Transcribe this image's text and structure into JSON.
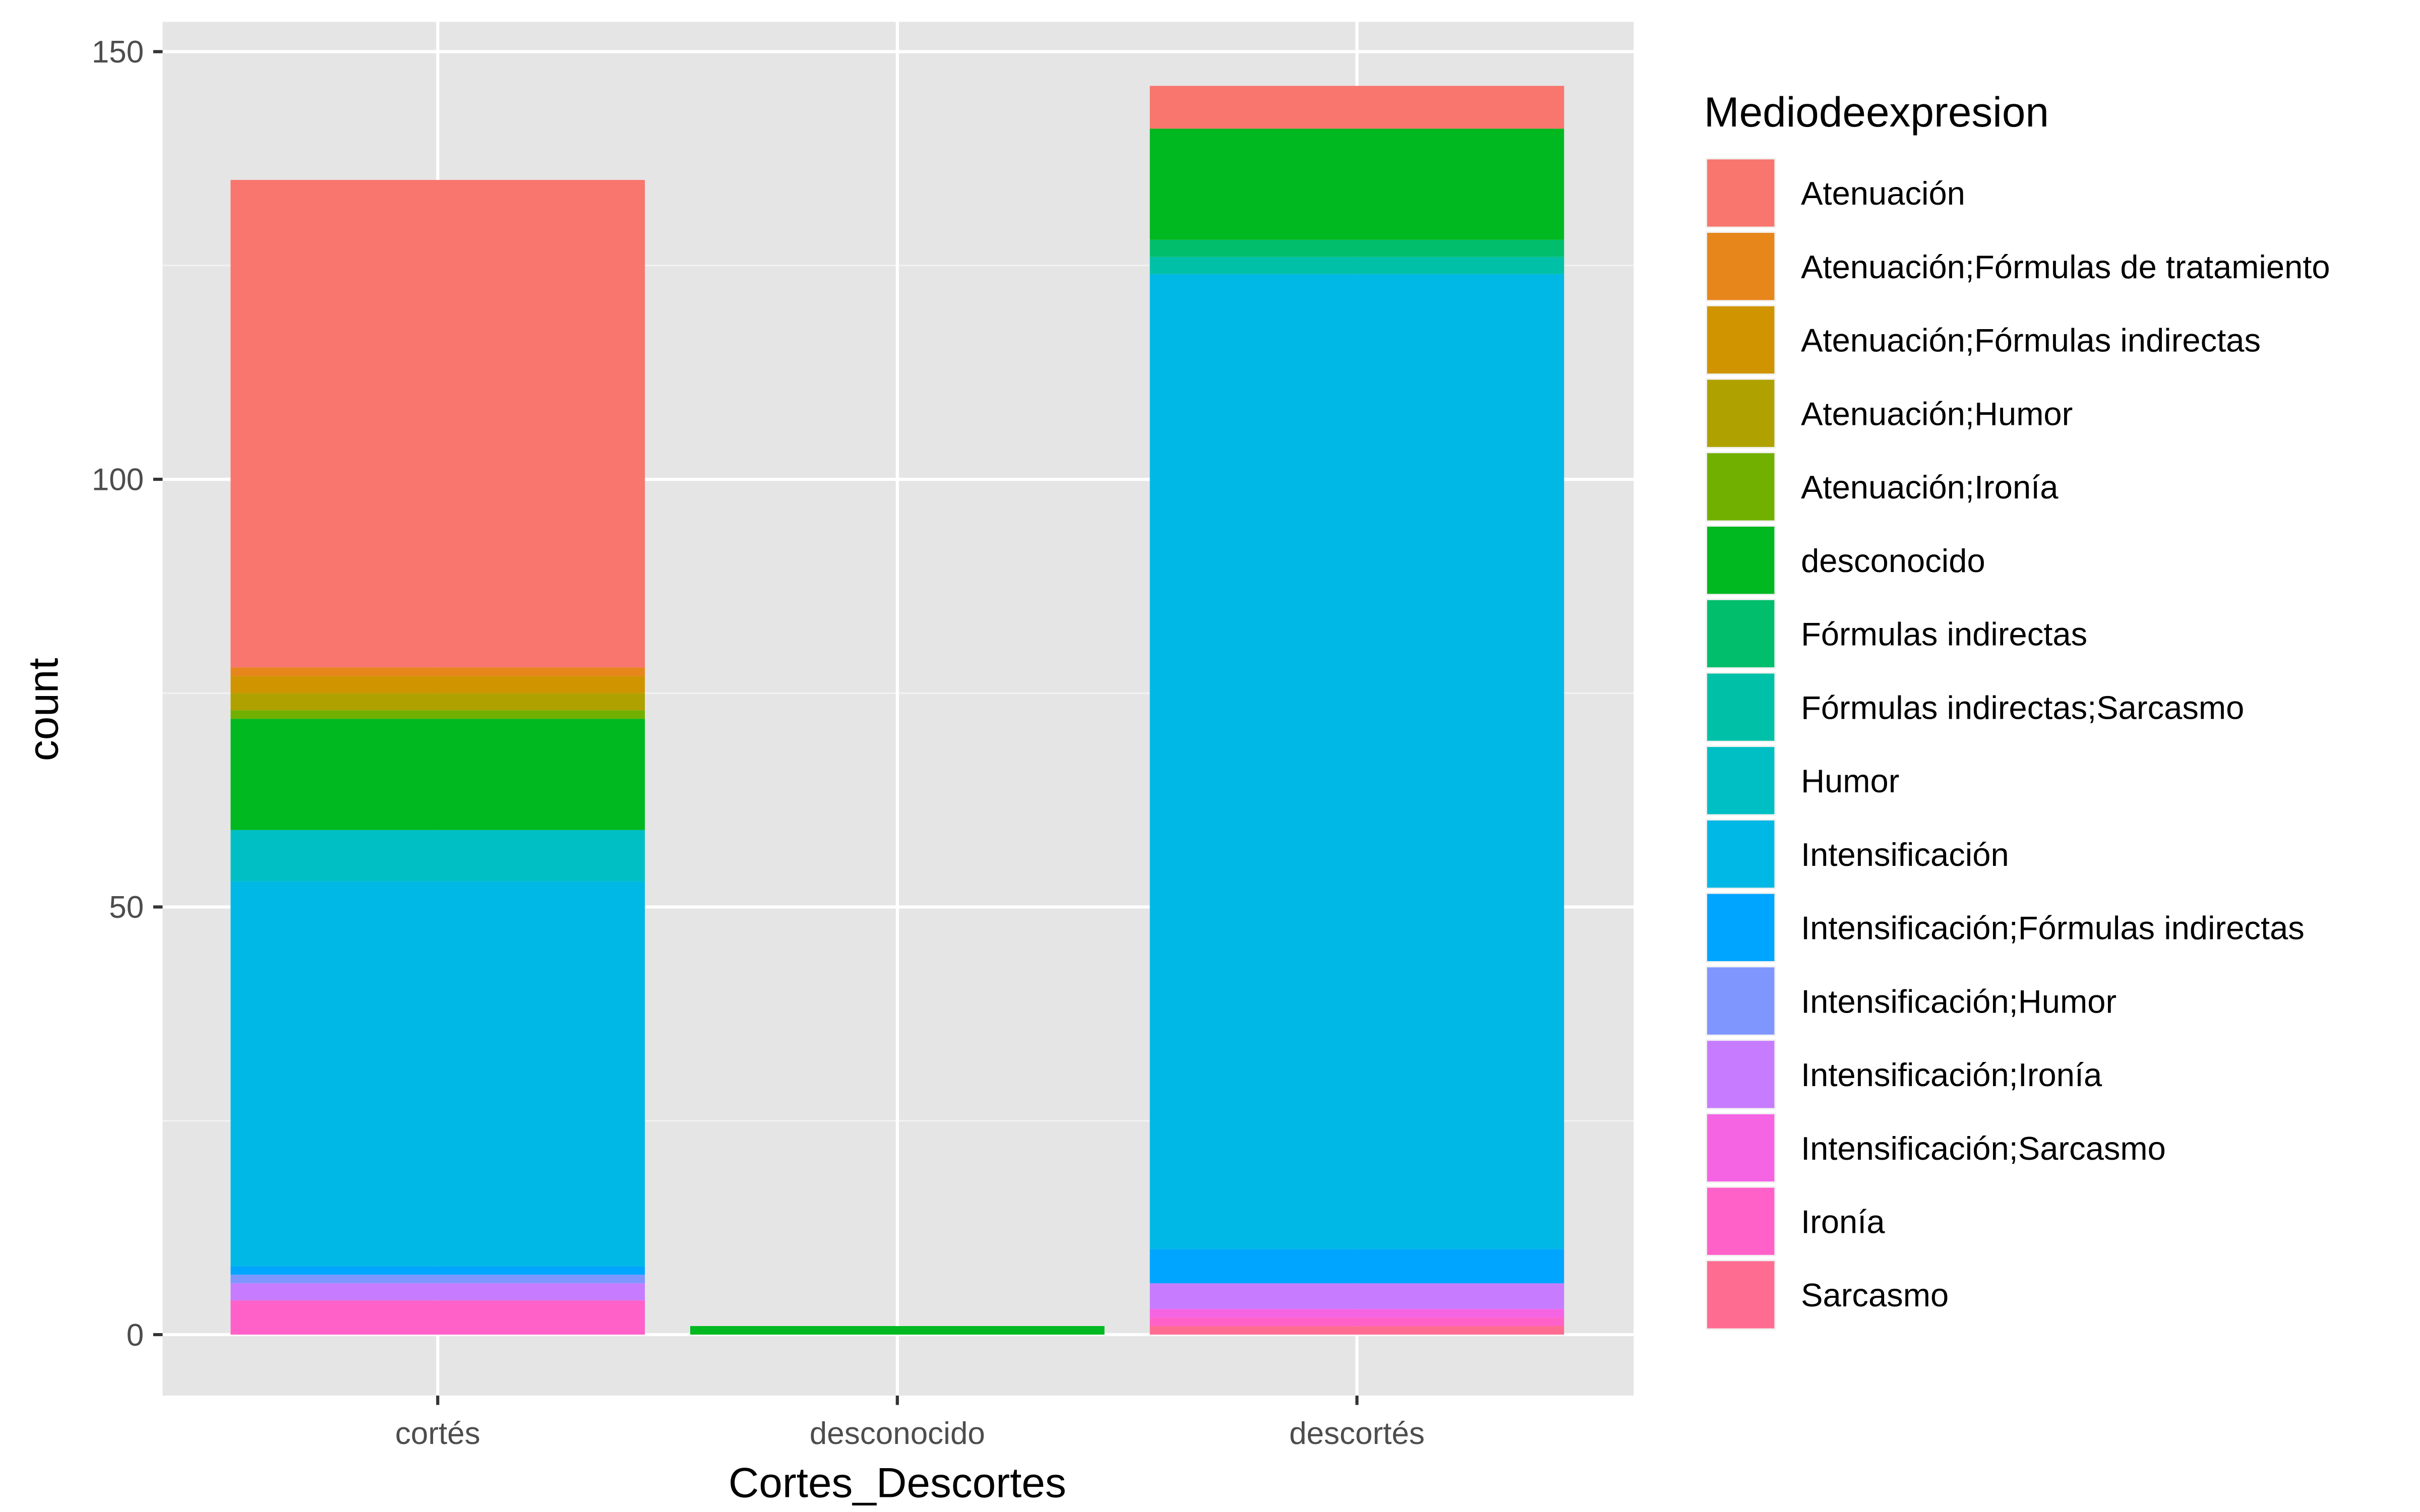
{
  "chart_data": {
    "type": "bar",
    "stacked": true,
    "title": "",
    "xlabel": "Cortes_Descortes",
    "ylabel": "count",
    "ylim": [
      -3,
      157
    ],
    "yticks": [
      "0",
      "50",
      "100",
      "150"
    ],
    "ytick_values": [
      0,
      50,
      100,
      150
    ],
    "grid": true,
    "legend_position": "right",
    "legend_title": "Mediodeexpresion",
    "categories": [
      "cortés",
      "desconocido",
      "descortés"
    ],
    "series": [
      {
        "name": "Atenuación",
        "color": "#F8766D",
        "values": [
          57,
          0,
          5
        ]
      },
      {
        "name": "Atenuación;Fórmulas de tratamiento",
        "color": "#E7861B",
        "values": [
          1,
          0,
          0
        ]
      },
      {
        "name": "Atenuación;Fórmulas indirectas",
        "color": "#CF9400",
        "values": [
          2,
          0,
          0
        ]
      },
      {
        "name": "Atenuación;Humor",
        "color": "#AFA100",
        "values": [
          2,
          0,
          0
        ]
      },
      {
        "name": "Atenuación;Ironía",
        "color": "#72B000",
        "values": [
          1,
          0,
          0
        ]
      },
      {
        "name": "desconocido",
        "color": "#00B81F",
        "values": [
          13,
          1,
          13
        ]
      },
      {
        "name": "Fórmulas indirectas",
        "color": "#00BE6C",
        "values": [
          0,
          0,
          2
        ]
      },
      {
        "name": "Fórmulas indirectas;Sarcasmo",
        "color": "#00C1A7",
        "values": [
          0,
          0,
          2
        ]
      },
      {
        "name": "Humor",
        "color": "#00BFC4",
        "values": [
          6,
          0,
          0
        ]
      },
      {
        "name": "Intensificación",
        "color": "#00B8E5",
        "values": [
          45,
          0,
          114
        ]
      },
      {
        "name": "Intensificación;Fórmulas indirectas",
        "color": "#00A5FF",
        "values": [
          1,
          0,
          4
        ]
      },
      {
        "name": "Intensificación;Humor",
        "color": "#7F96FF",
        "values": [
          1,
          0,
          0
        ]
      },
      {
        "name": "Intensificación;Ironía",
        "color": "#C77CFF",
        "values": [
          2,
          0,
          3
        ]
      },
      {
        "name": "Intensificación;Sarcasmo",
        "color": "#F564E3",
        "values": [
          0,
          0,
          1
        ]
      },
      {
        "name": "Ironía",
        "color": "#FF61C9",
        "values": [
          4,
          0,
          1
        ]
      },
      {
        "name": "Sarcasmo",
        "color": "#FF6C91",
        "values": [
          0,
          0,
          1
        ]
      }
    ]
  }
}
